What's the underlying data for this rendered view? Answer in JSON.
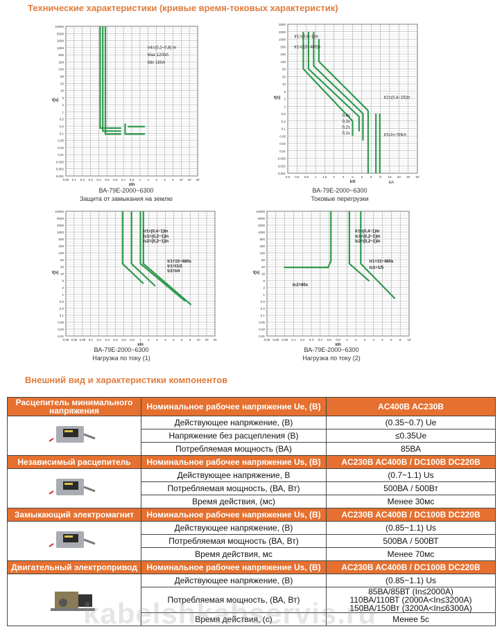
{
  "section1": {
    "title": "Технические характеристики (кривые время-токовых характеристик)"
  },
  "figures": [
    {
      "y_axis": "t(s)",
      "x_axis": "xIn",
      "y_labels": [
        "10000",
        "5000",
        "2000",
        "1000",
        "500",
        "200",
        "100",
        "50",
        "20",
        "10",
        "5",
        "2",
        "1",
        "0,5",
        "0,2",
        "0,1",
        "0,05",
        "0,02",
        "0,01",
        "0,005",
        "0,002",
        "0,001"
      ],
      "x_labels": [
        "0,06",
        "0,1",
        "0,2",
        "0,3",
        "0,4",
        "0,5",
        "0,6",
        "0,7",
        "0,8",
        "1",
        "2",
        "3",
        "4",
        "5",
        "10",
        "20",
        "30"
      ],
      "annotations": [
        "Ir4=(0,2~0,8) In",
        "Max  1200A",
        "Min   160A"
      ],
      "model": "ВА-79Е-2000~6300",
      "caption": "Защита от замыкания на землю"
    },
    {
      "y_axis": "t(s)",
      "x_axis": "Ir/t",
      "y_labels": [
        "3000",
        "2000",
        "1000",
        "500",
        "200",
        "100",
        "50",
        "20",
        "10",
        "5",
        "2",
        "1",
        "0,5",
        "0,2",
        "0,1",
        "0,05",
        "0,02",
        "0,01",
        "0,005",
        "0,002",
        "0,001"
      ],
      "x_labels": [
        "0,5",
        "0,6",
        "0,8",
        "1",
        "1,5",
        "2",
        "3",
        "4",
        "5",
        "6",
        "8",
        "10",
        "20",
        "30",
        "50"
      ],
      "annotations": [
        "Ir1=(0,4~1)In",
        "tr1=(15~480)s",
        "Ir2=(0,4~15)In",
        "0,4s",
        "0,3s",
        "0,2s",
        "0,1s",
        "Ir3=In~50kA",
        "kA"
      ],
      "model": "ВА-79Е-2000~6300",
      "caption": "Токовые перегрузки"
    },
    {
      "y_axis": "t(s)",
      "x_axis": "xIn",
      "y_labels": [
        "10000",
        "5000",
        "2000",
        "1000",
        "500",
        "200",
        "100",
        "50",
        "20",
        "10",
        "5",
        "2",
        "1",
        "0,5",
        "0,2",
        "0,1",
        "0,05",
        "0,02",
        "0,01"
      ],
      "x_labels": [
        "0,05",
        "0,06",
        "0,08",
        "0,1",
        "0,2",
        "0,3",
        "0,4",
        "0,6",
        "0,8",
        "1",
        "2",
        "3",
        "4",
        "5",
        "6",
        "8",
        "10",
        "20",
        "30"
      ],
      "annotations": [
        "Ir1=(0,4~1)In",
        "Ic1=(0,2~1)In",
        "Ic2=(0,2~1)In",
        "tr1=15~480s",
        "tr1=t1/2",
        "tr2=t/4"
      ],
      "model": "ВА-79Е-2000~6300",
      "caption": "Нагрузка по току (1)"
    },
    {
      "y_axis": "t(s)",
      "x_axis": "xIn",
      "y_labels": [
        "10000",
        "5000",
        "2000",
        "1000",
        "500",
        "200",
        "100",
        "50",
        "20",
        "10",
        "5",
        "2",
        "1",
        "0,5",
        "0,2",
        "0,1",
        "0,05",
        "0,02",
        "0,01"
      ],
      "x_labels": [
        "0,05",
        "0,06",
        "0,08",
        "0,1",
        "0,2",
        "0,3",
        "0,4",
        "0,6",
        "0,8",
        "1",
        "2",
        "3",
        "4",
        "5",
        "6",
        "8",
        "10"
      ],
      "annotations": [
        "Ir1=(0,4~1)In",
        "Ic1=(0,2~1)In",
        "Ic2=(0,2~1)In",
        "tr1=15~480s",
        "tc1=1/5",
        "tc2=60s"
      ],
      "model": "ВА-79Е-2000~6300",
      "caption": "Нагрузка по току (2)"
    }
  ],
  "section2": {
    "title": "Внешний вид и характеристики компонентов"
  },
  "groups": [
    {
      "name": "Расцепитель минимального напряжения",
      "header": [
        "Номинальное рабочее напряжение Ue, (В)",
        "AC400B AC230B"
      ],
      "rows": [
        [
          "Действующее напряжение, (В)",
          "(0.35~0.7) Ue"
        ],
        [
          "Напряжение без расцепления (В)",
          "≤0.35Ue"
        ],
        [
          "Потребляемая мощность (ВА)",
          "85ВА"
        ]
      ]
    },
    {
      "name": "Независимый расцепитель",
      "header": [
        "Номинальное рабочее напряжение Us, (В)",
        "AC230B AC400B / DC100B DC220B"
      ],
      "rows": [
        [
          "Действующее напряжение, В",
          "(0.7~1.1) Us"
        ],
        [
          "Потребляемая мощность,  (ВА, Вт)",
          "500ВА / 500Вт"
        ],
        [
          "Время действия, (мс)",
          "Менее 30мс"
        ]
      ]
    },
    {
      "name": "Замыкающий электромагнит",
      "header": [
        "Номинальное рабочее напряжение Us, (В)",
        "AC230B AC400B / DC100B DC220B"
      ],
      "rows": [
        [
          "Действующее напряжение, (В)",
          "(0.85~1.1) Us"
        ],
        [
          "Потребляемая мощность (ВА, Вт)",
          "500ВА / 500ВТ"
        ],
        [
          "Время действия, мс",
          "Менее 70мс"
        ]
      ]
    },
    {
      "name": "Двигательный электропривод",
      "header": [
        "Номинальное рабочее напряжение Us, (В)",
        "AC230B AC400B / DC100B DC220B"
      ],
      "rows": [
        [
          "Действующее напряжение, (В)",
          "(0.85~1.1) Us"
        ],
        [
          "Потребляемая мощность, (ВА, Вт)",
          [
            "85ВА/85ВТ  (In≤2000A)",
            "110ВА/110ВТ (2000A<In≤3200A)",
            "150ВА/150Вт (3200A<In≤6300A)"
          ]
        ],
        [
          "Время действия, (с)",
          "Менее 5с"
        ]
      ]
    }
  ],
  "watermark": "kabelshkabservis.ru"
}
